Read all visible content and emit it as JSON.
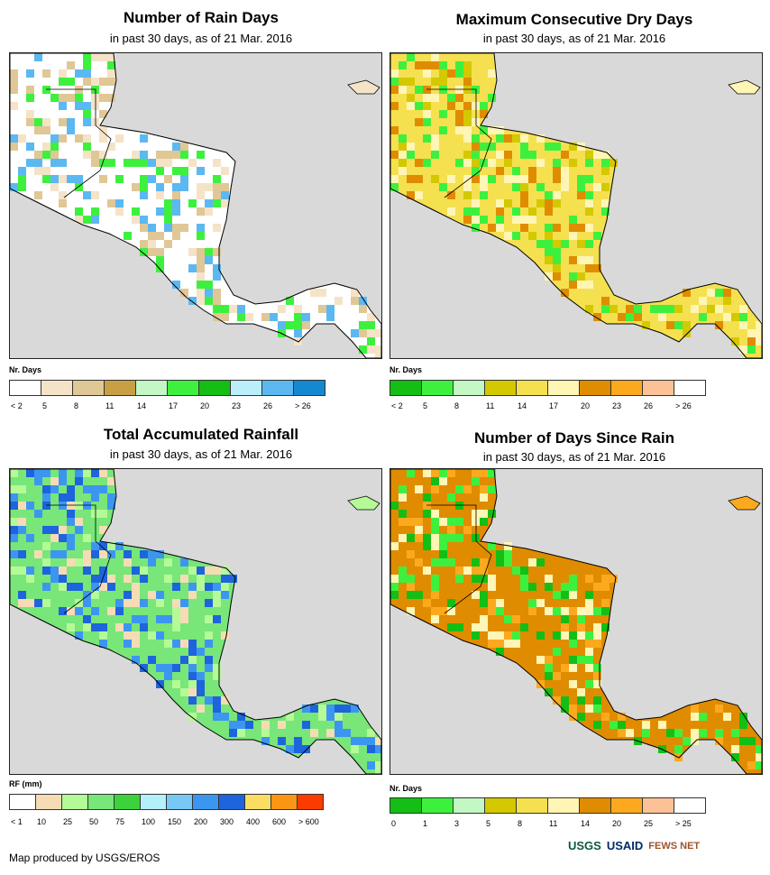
{
  "panels": [
    {
      "title": "Number of Rain Days",
      "subtitle": "in past 30 days, as of 21 Mar. 2016",
      "legend_title": "Nr. Days",
      "colors": [
        "#ffffff",
        "#f5e3c8",
        "#e0c796",
        "#c8a043",
        "#c3f7c3",
        "#3ef03e",
        "#14be14",
        "#b9eefa",
        "#5cb8f0",
        "#1488d0"
      ],
      "ticks": [
        "< 2",
        "5",
        "8",
        "11",
        "14",
        "17",
        "20",
        "23",
        "26",
        "> 26"
      ],
      "palette": {
        "land": "#ffffff",
        "a": "#f5e3c8",
        "b": "#e0c796",
        "c": "#3ef03e",
        "d": "#5cb8f0"
      }
    },
    {
      "title": "Maximum Consecutive Dry Days",
      "subtitle": "in past 30 days, as of 21 Mar. 2016",
      "legend_title": "Nr. Days",
      "colors": [
        "#14be14",
        "#3ef03e",
        "#c3f7c3",
        "#d4c800",
        "#f5e050",
        "#fff5b4",
        "#e08c00",
        "#fca91e",
        "#fcc296",
        "#ffffff"
      ],
      "ticks": [
        "< 2",
        "5",
        "8",
        "11",
        "14",
        "17",
        "20",
        "23",
        "26",
        "> 26"
      ],
      "palette": {
        "land": "#f5e050",
        "a": "#fff5b4",
        "b": "#d4c800",
        "c": "#3ef03e",
        "d": "#e08c00"
      }
    },
    {
      "title": "Total Accumulated Rainfall",
      "subtitle": "in past 30 days, as of 21 Mar. 2016",
      "legend_title": "RF (mm)",
      "colors": [
        "#ffffff",
        "#f5dcb4",
        "#b4fa96",
        "#78e678",
        "#3cd23c",
        "#b4f0fa",
        "#78c8f5",
        "#3c96f0",
        "#1e64dc",
        "#fade64",
        "#fa9614",
        "#fa3c00"
      ],
      "ticks": [
        "< 1",
        "10",
        "25",
        "50",
        "75",
        "100",
        "150",
        "200",
        "300",
        "400",
        "600",
        "> 600"
      ],
      "palette": {
        "land": "#78e678",
        "a": "#b4fa96",
        "b": "#f5dcb4",
        "c": "#3c96f0",
        "d": "#1e64dc"
      }
    },
    {
      "title": "Number of Days Since Rain",
      "subtitle": "in past 30 days, as of 21 Mar. 2016",
      "legend_title": "Nr. Days",
      "colors": [
        "#14be14",
        "#3ef03e",
        "#c3f7c3",
        "#d4c800",
        "#f5e050",
        "#fff5b4",
        "#e08c00",
        "#fca91e",
        "#fcc296",
        "#ffffff"
      ],
      "ticks": [
        "0",
        "1",
        "3",
        "5",
        "8",
        "11",
        "14",
        "20",
        "25",
        "> 25"
      ],
      "palette": {
        "land": "#e08c00",
        "a": "#fca91e",
        "b": "#fff5b4",
        "c": "#14be14",
        "d": "#3ef03e"
      }
    }
  ],
  "credit": "Map produced by USGS/EROS",
  "logos": [
    "USGS",
    "USAID",
    "FEWS NET"
  ]
}
